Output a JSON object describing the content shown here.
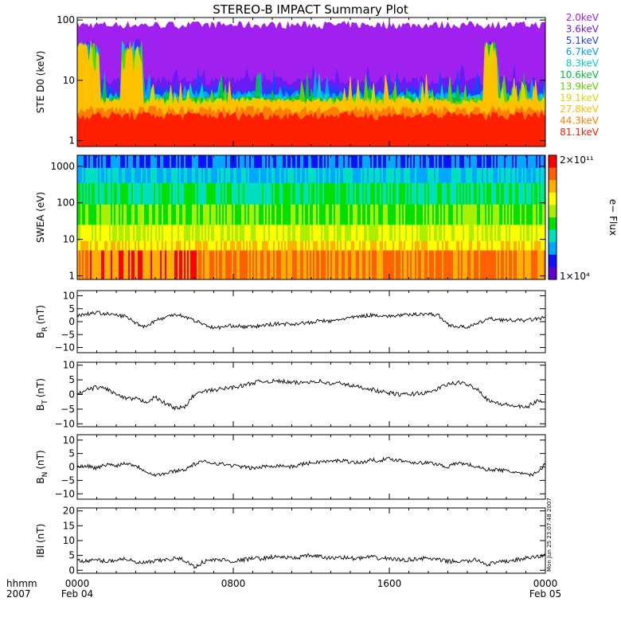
{
  "title": "STEREO-B IMPACT Summary Plot",
  "x_axis": {
    "ticks": [
      {
        "hour": 0,
        "label": "0000",
        "sub": "Feb 04"
      },
      {
        "hour": 8,
        "label": "0800",
        "sub": ""
      },
      {
        "hour": 16,
        "label": "1600",
        "sub": ""
      },
      {
        "hour": 24,
        "label": "0000",
        "sub": "Feb 05"
      }
    ],
    "unit_label": "hhmm",
    "year_label": "2007",
    "range_hours": [
      0,
      24
    ]
  },
  "timestamp": "Mon Jun 25 23:07:48 2007",
  "colorbar": {
    "top_label": "2×10¹¹",
    "bottom_label": "1×10⁴",
    "title": "e− Flux",
    "colors": [
      "#6000d0",
      "#1010ff",
      "#00a8ff",
      "#00e0c0",
      "#00e000",
      "#a8f000",
      "#ffff00",
      "#ffb000",
      "#ff6000",
      "#ff0000"
    ]
  },
  "chart_data": [
    {
      "type": "line",
      "panel": "ste",
      "ylabel": "STE D0 (keV)",
      "yscale": "log",
      "ylim": [
        0.8,
        110
      ],
      "yticks": [
        {
          "v": 1,
          "label": "1"
        },
        {
          "v": 10,
          "label": "10"
        },
        {
          "v": 100,
          "label": "100"
        }
      ],
      "channels": [
        {
          "name": "2.0keV",
          "color": "#a020f0"
        },
        {
          "name": "3.6keV",
          "color": "#6a1cf5"
        },
        {
          "name": "5.1keV",
          "color": "#2040ff"
        },
        {
          "name": "6.7keV",
          "color": "#00a0f0"
        },
        {
          "name": "8.3keV",
          "color": "#00d0c8"
        },
        {
          "name": "10.6keV",
          "color": "#00c040"
        },
        {
          "name": "13.9keV",
          "color": "#60d000"
        },
        {
          "name": "19.1keV",
          "color": "#d8d800"
        },
        {
          "name": "27.8keV",
          "color": "#ffc000"
        },
        {
          "name": "44.3keV",
          "color": "#ff8000"
        },
        {
          "name": "81.1keV",
          "color": "#ff2000"
        }
      ]
    },
    {
      "type": "heatmap",
      "panel": "swea",
      "ylabel": "SWEA (eV)",
      "yscale": "log",
      "ylim": [
        0.8,
        2000
      ],
      "yticks": [
        {
          "v": 1,
          "label": "1"
        },
        {
          "v": 10,
          "label": "10"
        },
        {
          "v": 100,
          "label": "100"
        },
        {
          "v": 1000,
          "label": "1000"
        }
      ],
      "colorbar_range": [
        10000.0,
        200000000000.0
      ]
    },
    {
      "type": "line",
      "panel": "br",
      "ylabel": "B",
      "ylabel_sub": "R",
      "ylabel_unit": "(nT)",
      "ylim": [
        -12,
        12
      ],
      "yticks": [
        {
          "v": -10,
          "label": "−10"
        },
        {
          "v": -5,
          "label": "−5"
        },
        {
          "v": 0,
          "label": "0"
        },
        {
          "v": 5,
          "label": "5"
        },
        {
          "v": 10,
          "label": "10"
        }
      ],
      "x_hours": [
        0,
        0.5,
        1,
        1.5,
        2,
        2.5,
        3,
        3.5,
        4,
        4.5,
        5,
        5.5,
        6,
        6.5,
        7,
        7.5,
        8,
        8.5,
        9,
        9.5,
        10,
        10.5,
        11,
        11.5,
        12,
        12.5,
        13,
        13.5,
        14,
        14.5,
        15,
        15.5,
        16,
        16.5,
        17,
        17.5,
        18,
        18.5,
        19,
        19.5,
        20,
        20.5,
        21,
        21.5,
        22,
        22.5,
        23,
        23.5,
        24
      ],
      "values": [
        2.5,
        3,
        3.5,
        3,
        2.5,
        2,
        -0.5,
        -2,
        0.5,
        1.5,
        3,
        2,
        0.5,
        -1,
        -2.5,
        -2,
        -1.5,
        -2,
        -2,
        -1.5,
        -1,
        -0.8,
        -1,
        -0.5,
        -0.5,
        0.5,
        0,
        1,
        1.5,
        2,
        2.5,
        2.5,
        2,
        2.5,
        2.5,
        3,
        3,
        2.5,
        -1,
        -2,
        -2,
        -1,
        1,
        1,
        0.5,
        0.5,
        0.5,
        1,
        1.5
      ]
    },
    {
      "type": "line",
      "panel": "bt",
      "ylabel": "B",
      "ylabel_sub": "T",
      "ylabel_unit": "(nT)",
      "ylim": [
        -11,
        11
      ],
      "yticks": [
        {
          "v": -10,
          "label": "−10"
        },
        {
          "v": -5,
          "label": "−5"
        },
        {
          "v": 0,
          "label": "0"
        },
        {
          "v": 5,
          "label": "5"
        },
        {
          "v": 10,
          "label": "10"
        }
      ],
      "x_hours": [
        0,
        0.5,
        1,
        1.5,
        2,
        2.5,
        3,
        3.5,
        4,
        4.5,
        5,
        5.5,
        6,
        6.5,
        7,
        7.5,
        8,
        8.5,
        9,
        9.5,
        10,
        10.5,
        11,
        11.5,
        12,
        12.5,
        13,
        13.5,
        14,
        14.5,
        15,
        15.5,
        16,
        16.5,
        17,
        17.5,
        18,
        18.5,
        19,
        19.5,
        20,
        20.5,
        21,
        21.5,
        22,
        22.5,
        23,
        23.5,
        24
      ],
      "values": [
        0,
        1.5,
        2.5,
        2,
        0,
        -1.5,
        -1.5,
        -2.5,
        -1,
        -3,
        -4.5,
        -4.5,
        0,
        1,
        1.5,
        2,
        2.5,
        3,
        4,
        4.5,
        4.5,
        4.5,
        4,
        4,
        4.5,
        4.5,
        3.5,
        4,
        3,
        2.5,
        2,
        1,
        0.5,
        0,
        0,
        0.5,
        0.5,
        2,
        3.5,
        4,
        3.5,
        2,
        -1.5,
        -3,
        -3.5,
        -4,
        -4.5,
        -2.5,
        -2
      ]
    },
    {
      "type": "line",
      "panel": "bn",
      "ylabel": "B",
      "ylabel_sub": "N",
      "ylabel_unit": "(nT)",
      "ylim": [
        -12,
        12
      ],
      "yticks": [
        {
          "v": -10,
          "label": "−10"
        },
        {
          "v": -5,
          "label": "−5"
        },
        {
          "v": 0,
          "label": "0"
        },
        {
          "v": 5,
          "label": "5"
        },
        {
          "v": 10,
          "label": "10"
        }
      ],
      "x_hours": [
        0,
        0.5,
        1,
        1.5,
        2,
        2.5,
        3,
        3.5,
        4,
        4.5,
        5,
        5.5,
        6,
        6.5,
        7,
        7.5,
        8,
        8.5,
        9,
        9.5,
        10,
        10.5,
        11,
        11.5,
        12,
        12.5,
        13,
        13.5,
        14,
        14.5,
        15,
        15.5,
        16,
        16.5,
        17,
        17.5,
        18,
        18.5,
        19,
        19.5,
        20,
        20.5,
        21,
        21.5,
        22,
        22.5,
        23,
        23.5,
        24
      ],
      "values": [
        0,
        0.5,
        -0.5,
        1,
        0.5,
        1.5,
        0.5,
        -1.5,
        -3,
        -2.5,
        -1.5,
        -1,
        1,
        2,
        1.5,
        1,
        0.5,
        0,
        -0.5,
        0,
        0.5,
        0.5,
        0,
        1,
        1.5,
        2,
        2,
        2.5,
        2,
        1.5,
        2.5,
        2.5,
        3,
        2.5,
        2,
        1.5,
        1.5,
        1,
        0,
        1.5,
        1,
        0,
        -1,
        -1,
        -1.5,
        -2,
        -3,
        -2.5,
        1
      ]
    },
    {
      "type": "line",
      "panel": "bmag",
      "ylabel": "IBI",
      "ylabel_sub": "",
      "ylabel_unit": "(nT)",
      "ylim": [
        -1,
        21
      ],
      "yticks": [
        {
          "v": 0,
          "label": "0"
        },
        {
          "v": 5,
          "label": "5"
        },
        {
          "v": 10,
          "label": "10"
        },
        {
          "v": 15,
          "label": "15"
        },
        {
          "v": 20,
          "label": "20"
        }
      ],
      "x_hours": [
        0,
        0.5,
        1,
        1.5,
        2,
        2.5,
        3,
        3.5,
        4,
        4.5,
        5,
        5.5,
        6,
        6.5,
        7,
        7.5,
        8,
        8.5,
        9,
        9.5,
        10,
        10.5,
        11,
        11.5,
        12,
        12.5,
        13,
        13.5,
        14,
        14.5,
        15,
        15.5,
        16,
        16.5,
        17,
        17.5,
        18,
        18.5,
        19,
        19.5,
        20,
        20.5,
        21,
        21.5,
        22,
        22.5,
        23,
        23.5,
        24
      ],
      "values": [
        3.5,
        3,
        3.5,
        3,
        3.5,
        4,
        2.5,
        2.5,
        3,
        3.5,
        4,
        3.5,
        1,
        3,
        3.5,
        3.5,
        3,
        3.5,
        4,
        4,
        4.5,
        4.5,
        4,
        4.5,
        5,
        4.5,
        4,
        4.5,
        4,
        4,
        4.5,
        4,
        4,
        3.5,
        3.5,
        4,
        4,
        3.5,
        3,
        3,
        3,
        3.5,
        2,
        2.5,
        3,
        3.5,
        4,
        4.5,
        5
      ]
    }
  ]
}
